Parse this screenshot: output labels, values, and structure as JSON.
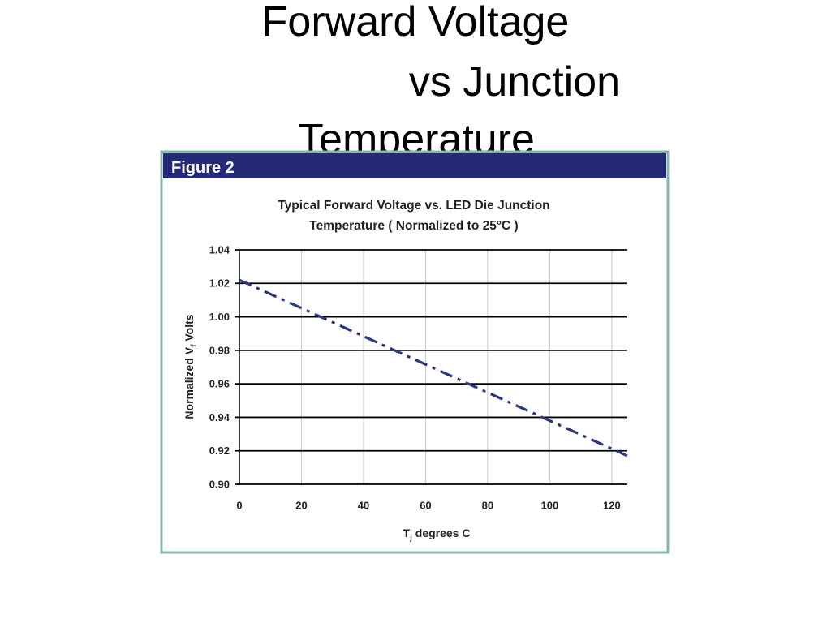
{
  "slide_title": [
    "Forward Voltage",
    "vs Junction",
    "Temperature"
  ],
  "figure_label": "Figure 2",
  "chart_data": {
    "type": "line",
    "title": [
      "Typical Forward Voltage vs. LED Die Junction",
      "Temperature ( Normalized to 25°C )"
    ],
    "x_label": {
      "main": "T",
      "sub": "j",
      "rest": " degrees C"
    },
    "y_label": {
      "main": "Normalized V",
      "sub": "f",
      "rest": " Volts"
    },
    "x": [
      0,
      125
    ],
    "series": [
      {
        "color": "#2b3785",
        "values": [
          1.022,
          0.917
        ]
      }
    ],
    "xlim": [
      0,
      125
    ],
    "xticks": [
      0,
      20,
      40,
      60,
      80,
      100,
      120
    ],
    "ylim": [
      0.9,
      1.04
    ],
    "yticks": [
      {
        "value": 0.9,
        "label": "0.90"
      },
      0.92,
      0.94,
      0.96,
      0.98,
      {
        "value": 1.0,
        "label": "1.00"
      },
      1.02,
      1.04
    ],
    "grid": true
  }
}
